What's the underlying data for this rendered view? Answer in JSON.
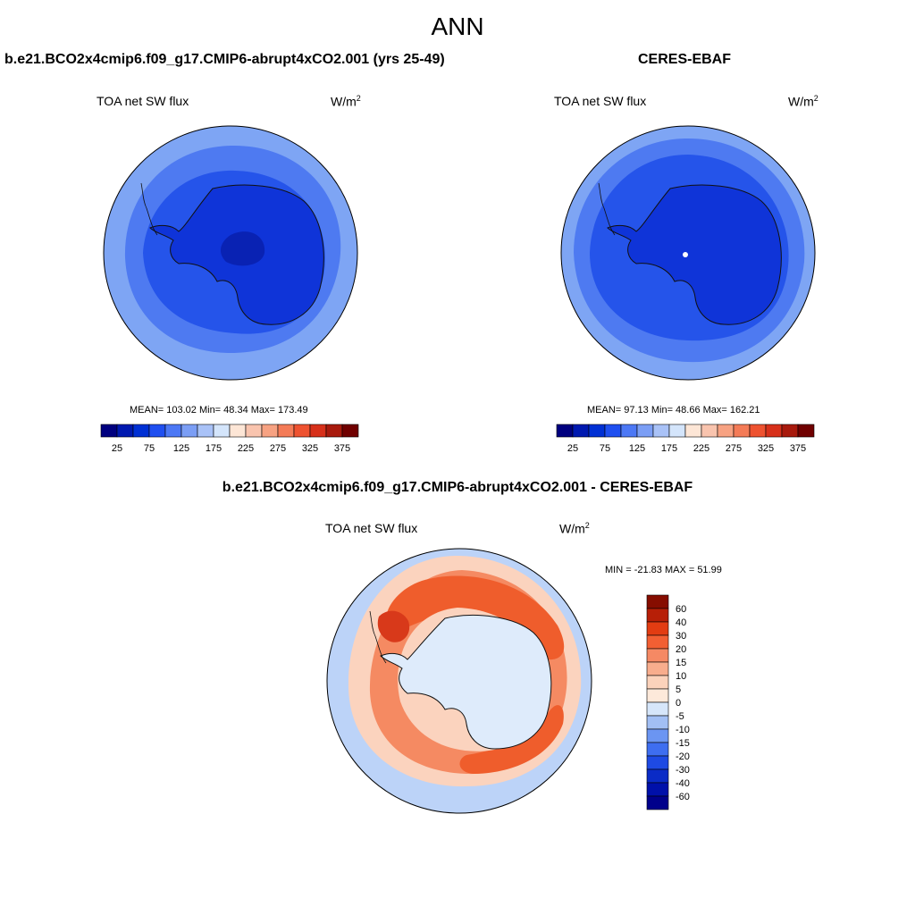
{
  "page": {
    "title": "ANN"
  },
  "panels": {
    "model": {
      "case_title": "b.e21.BCO2x4cmip6.f09_g17.CMIP6-abrupt4xCO2.001 (yrs 25-49)",
      "variable": "TOA net SW flux",
      "units_base": "W/m",
      "units_exp": "2",
      "stats": "MEAN= 103.02  Min=  48.34  Max= 173.49",
      "mean": 103.02,
      "min": 48.34,
      "max": 173.49
    },
    "obs": {
      "case_title": "CERES-EBAF",
      "variable": "TOA net SW flux",
      "units_base": "W/m",
      "units_exp": "2",
      "stats": "MEAN=  97.13  Min=  48.66  Max= 162.21",
      "mean": 97.13,
      "min": 48.66,
      "max": 162.21
    },
    "diff": {
      "case_title": "b.e21.BCO2x4cmip6.f09_g17.CMIP6-abrupt4xCO2.001 - CERES-EBAF",
      "variable": "TOA net SW flux",
      "units_base": "W/m",
      "units_exp": "2",
      "stats": "MIN = -21.83 MAX =  51.99",
      "min": -21.83,
      "max": 51.99
    }
  },
  "colorbars": {
    "abs": {
      "colors": [
        "#00007f",
        "#0019b0",
        "#0030d4",
        "#1f4ff0",
        "#4c78f5",
        "#7b9ef5",
        "#a9c2f7",
        "#d4e5fb",
        "#fde6d6",
        "#f9c4ae",
        "#f7a282",
        "#f47b57",
        "#ee5230",
        "#d7301a",
        "#a81a0d",
        "#700000"
      ],
      "tick_labels": [
        "25",
        "75",
        "125",
        "175",
        "225",
        "275",
        "325",
        "375"
      ]
    },
    "diff": {
      "colors": [
        "#00008b",
        "#0010aa",
        "#0a2bc6",
        "#1e4ae3",
        "#3e6ef0",
        "#6b95f2",
        "#a2bff4",
        "#d6e6fa",
        "#fde9da",
        "#fbd2bb",
        "#f8ad8d",
        "#f58964",
        "#f25f33",
        "#e23c12",
        "#b71f07",
        "#860d00"
      ],
      "tick_labels": [
        "60",
        "40",
        "30",
        "20",
        "15",
        "10",
        "5",
        "0",
        "-5",
        "-10",
        "-15",
        "-20",
        "-30",
        "-40",
        "-60"
      ]
    }
  },
  "map_colors": {
    "abs_outer": "#7ea5f4",
    "abs_mid": "#4e7af1",
    "abs_inner": "#2554ea",
    "abs_continent": "#0f34d8",
    "abs_deep": "#0922b3",
    "diff_background": "#bcd3f8",
    "diff_ring_light": "#fbd3be",
    "diff_ring_mid": "#f58a62",
    "diff_ring_strong": "#ef5d2c",
    "diff_ring_max": "#d8391a",
    "diff_continent": "#deebfb"
  }
}
